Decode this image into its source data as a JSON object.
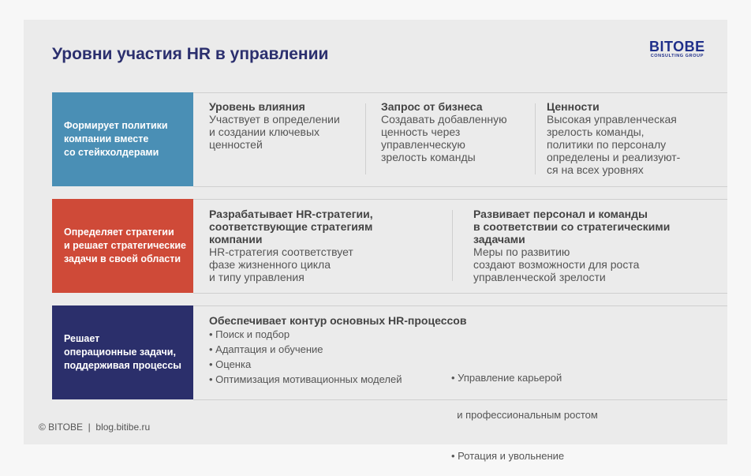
{
  "title": "Уровни участия HR в управлении",
  "logo": {
    "main": "BITOBE",
    "sub": "CONSULTING GROUP"
  },
  "colors": {
    "row1": "#4a8fb5",
    "row2": "#cf4a38",
    "row3": "#2b2f6b",
    "title": "#2b2f6e"
  },
  "rows": [
    {
      "label": [
        "Формирует политики",
        "компании вместе",
        "со стейкхолдерами"
      ],
      "cols": [
        {
          "head": "Уровень влияния",
          "text": [
            "Участвует в определении",
            "и создании ключевых",
            "ценностей"
          ]
        },
        {
          "head": "Запрос от бизнеса",
          "text": [
            "Создавать добавленную",
            "ценность через",
            "управленческую",
            "зрелость команды"
          ]
        },
        {
          "head": "Ценности",
          "text": [
            "Высокая управленческая",
            "зрелость команды,",
            "политики по персоналу",
            "определены и реализуют-",
            "ся на всех уровнях"
          ]
        }
      ]
    },
    {
      "label": [
        "Определяет стратегии",
        "и решает стратегические",
        "задачи в своей области"
      ],
      "cols": [
        {
          "head": [
            "Разрабатывает HR-стратегии,",
            "соответствующие стратегиям",
            "компании"
          ],
          "text": [
            "HR-стратегия соответствует",
            "фазе жизненного цикла",
            "и типу управления"
          ]
        },
        {
          "head": [
            "Развивает персонал и команды",
            "в соответствии со стратегическими",
            "задачами"
          ],
          "text": [
            "Меры по развитию",
            "создают возможности для роста",
            "управленческой зрелости"
          ]
        }
      ]
    },
    {
      "label": [
        "Решает",
        "операционные задачи,",
        "поддерживая процессы"
      ],
      "head": "Обеспечивает контур основных HR-процессов",
      "left": [
        "• Поиск и подбор",
        "• Адаптация и обучение",
        "• Оценка",
        "• Оптимизация мотивационных моделей"
      ],
      "right": [
        "• Управление карьерой",
        "  и профессиональным ростом",
        "• Ротация и увольнение"
      ]
    }
  ],
  "footer": "© BITOBE  |  blog.bitibe.ru"
}
